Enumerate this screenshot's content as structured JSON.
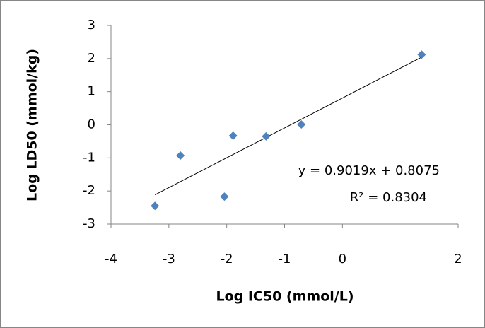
{
  "chart_data": {
    "type": "scatter",
    "x_label": "Log IC50 (mmol/L)",
    "y_label": "Log LD50 (mmol/kg)",
    "series": [
      {
        "color": "#4f81bd",
        "x": [
          -3.24,
          -2.8,
          -2.04,
          -1.89,
          -1.32,
          -0.71,
          1.37
        ],
        "values": [
          -2.45,
          -0.93,
          -2.17,
          -0.33,
          -0.35,
          0.01,
          2.12
        ]
      }
    ],
    "trendline": {
      "slope": 0.9019,
      "intercept": 0.8075,
      "equation": "y = 0.9019x + 0.8075",
      "r_squared": "R² = 0.8304"
    },
    "xlim": [
      -4,
      2
    ],
    "xticks": [
      -4,
      -3,
      -2,
      -1,
      0,
      2
    ],
    "ylim": [
      -3,
      3
    ],
    "yticks": [
      -3,
      -2,
      -1,
      0,
      1,
      2,
      3
    ],
    "grid": false
  }
}
